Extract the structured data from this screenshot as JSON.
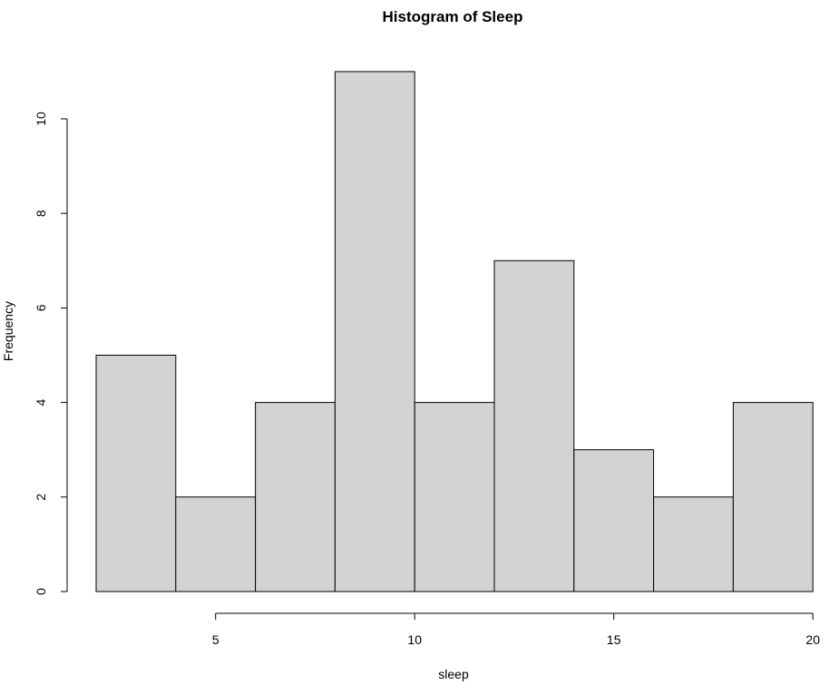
{
  "chart_data": {
    "type": "bar",
    "title": "Histogram of Sleep",
    "xlabel": "sleep",
    "ylabel": "Frequency",
    "bins": [
      {
        "from": 2,
        "to": 4,
        "count": 5
      },
      {
        "from": 4,
        "to": 6,
        "count": 2
      },
      {
        "from": 6,
        "to": 8,
        "count": 4
      },
      {
        "from": 8,
        "to": 10,
        "count": 11
      },
      {
        "from": 10,
        "to": 12,
        "count": 4
      },
      {
        "from": 12,
        "to": 14,
        "count": 7
      },
      {
        "from": 14,
        "to": 16,
        "count": 3
      },
      {
        "from": 16,
        "to": 18,
        "count": 2
      },
      {
        "from": 18,
        "to": 20,
        "count": 4
      }
    ],
    "x_ticks": [
      5,
      10,
      15,
      20
    ],
    "y_ticks": [
      0,
      2,
      4,
      6,
      8,
      10
    ],
    "xlim": [
      2,
      20
    ],
    "ylim": [
      0,
      11
    ],
    "grid": false,
    "colors": {
      "bar_fill": "#d3d3d3",
      "bar_stroke": "#000000"
    }
  }
}
